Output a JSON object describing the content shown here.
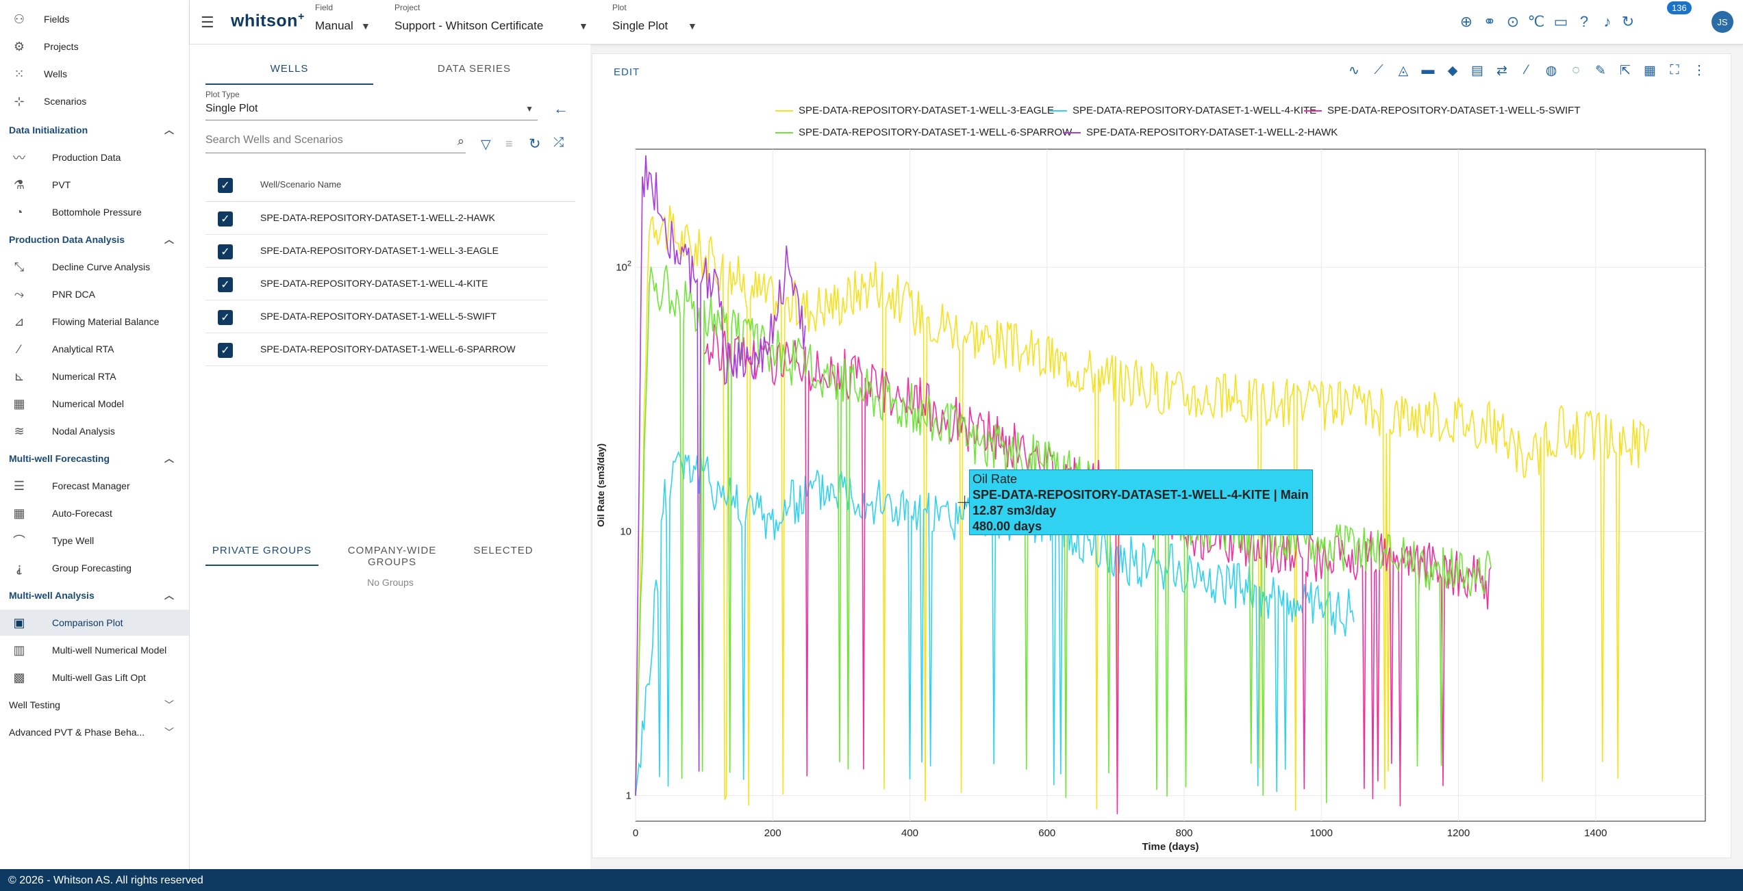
{
  "sidebar": {
    "top_items": [
      {
        "label": "Fields",
        "icon": "fields-icon"
      },
      {
        "label": "Projects",
        "icon": "projects-icon"
      },
      {
        "label": "Wells",
        "icon": "wells-icon"
      },
      {
        "label": "Scenarios",
        "icon": "scenarios-icon"
      }
    ],
    "sections": [
      {
        "title": "Data Initialization",
        "items": [
          "Production Data",
          "PVT",
          "Bottomhole Pressure"
        ]
      },
      {
        "title": "Production Data Analysis",
        "items": [
          "Decline Curve Analysis",
          "PNR DCA",
          "Flowing Material Balance",
          "Analytical RTA",
          "Numerical RTA",
          "Numerical Model",
          "Nodal Analysis"
        ]
      },
      {
        "title": "Multi-well Forecasting",
        "items": [
          "Forecast Manager",
          "Auto-Forecast",
          "Type Well",
          "Group Forecasting"
        ]
      },
      {
        "title": "Multi-well Analysis",
        "items": [
          "Comparison Plot",
          "Multi-well Numerical Model",
          "Multi-well Gas Lift Opt"
        ]
      }
    ],
    "collapsed": [
      "Well Testing",
      "Advanced PVT & Phase Beha..."
    ]
  },
  "topbar": {
    "logo": "whitson",
    "logo_sup": "+",
    "field_label": "Field",
    "field_value": "Manual",
    "project_label": "Project",
    "project_value": "Support - Whitson Certificate",
    "plot_label": "Plot",
    "plot_value": "Single Plot",
    "notifications": "136",
    "avatar": "JS",
    "temp_unit": "℃"
  },
  "left_panel": {
    "tabs": [
      "WELLS",
      "DATA SERIES"
    ],
    "plot_type_label": "Plot Type",
    "plot_type_value": "Single Plot",
    "search_placeholder": "Search Wells and Scenarios",
    "column_header": "Well/Scenario Name",
    "wells": [
      "SPE-DATA-REPOSITORY-DATASET-1-WELL-2-HAWK",
      "SPE-DATA-REPOSITORY-DATASET-1-WELL-3-EAGLE",
      "SPE-DATA-REPOSITORY-DATASET-1-WELL-4-KITE",
      "SPE-DATA-REPOSITORY-DATASET-1-WELL-5-SWIFT",
      "SPE-DATA-REPOSITORY-DATASET-1-WELL-6-SPARROW"
    ],
    "group_tabs": [
      "PRIVATE GROUPS",
      "COMPANY-WIDE GROUPS",
      "SELECTED"
    ],
    "no_groups": "No Groups"
  },
  "plot": {
    "edit_label": "EDIT",
    "tooltip": {
      "title": "Oil Rate",
      "series": "SPE-DATA-REPOSITORY-DATASET-1-WELL-4-KITE | Main",
      "value": "12.87 sm3/day",
      "time": "480.00 days"
    }
  },
  "chart_data": {
    "type": "line",
    "xlabel": "Time (days)",
    "ylabel": "Oil Rate (sm3/day)",
    "xlim": [
      0,
      1560
    ],
    "ylim": [
      0.8,
      280
    ],
    "yscale": "log",
    "x_ticks": [
      "0",
      "200",
      "400",
      "600",
      "800",
      "1000",
      "1200",
      "1400"
    ],
    "y_ticks": [
      {
        "base": "1",
        "sup": ""
      },
      {
        "base": "10",
        "sup": ""
      },
      {
        "base": "10",
        "sup": "2"
      }
    ],
    "legend_placement": "top",
    "grid": true,
    "series": [
      {
        "name": "SPE-DATA-REPOSITORY-DATASET-1-WELL-3-EAGLE",
        "color": "#f7e01e",
        "x": [
          0,
          20,
          60,
          100,
          150,
          200,
          250,
          300,
          350,
          400,
          500,
          600,
          700,
          800,
          900,
          1000,
          1100,
          1200,
          1250,
          1300,
          1350,
          1400,
          1480
        ],
        "y": [
          1,
          160,
          130,
          110,
          90,
          75,
          70,
          75,
          90,
          70,
          55,
          45,
          38,
          33,
          31,
          30,
          28,
          27,
          25,
          18,
          24,
          23,
          21
        ]
      },
      {
        "name": "SPE-DATA-REPOSITORY-DATASET-1-WELL-4-KITE",
        "color": "#2fd2f0",
        "x": [
          0,
          20,
          40,
          60,
          100,
          150,
          200,
          250,
          300,
          350,
          400,
          450,
          500,
          600,
          700,
          800,
          900,
          1000,
          1050
        ],
        "y": [
          1,
          3,
          12,
          20,
          16,
          13,
          11,
          14,
          15,
          13,
          12,
          11,
          12,
          11,
          8,
          7,
          6,
          5,
          5
        ]
      },
      {
        "name": "SPE-DATA-REPOSITORY-DATASET-1-WELL-5-SWIFT",
        "color": "#f0309e",
        "x": [
          100,
          200,
          300,
          400,
          500,
          600,
          700,
          800,
          900,
          1000,
          1100,
          1200,
          1250
        ],
        "y": [
          50,
          45,
          40,
          32,
          24,
          18,
          14,
          10,
          9,
          8,
          8,
          7,
          6
        ]
      },
      {
        "name": "SPE-DATA-REPOSITORY-DATASET-1-WELL-6-SPARROW",
        "color": "#6ee636",
        "x": [
          0,
          20,
          60,
          100,
          150,
          200,
          250,
          300,
          400,
          500,
          600,
          700,
          800,
          900,
          1000,
          1100,
          1200,
          1250
        ],
        "y": [
          1,
          90,
          80,
          65,
          55,
          48,
          42,
          38,
          30,
          22,
          18,
          13,
          11,
          10,
          9,
          8,
          7,
          7
        ]
      },
      {
        "name": "SPE-DATA-REPOSITORY-DATASET-1-WELL-2-HAWK",
        "color": "#a93ae0",
        "x": [
          0,
          10,
          20,
          40,
          60,
          80,
          100,
          120,
          130,
          180,
          200,
          220,
          240,
          250
        ],
        "y": [
          1,
          200,
          230,
          160,
          110,
          95,
          100,
          80,
          45,
          45,
          60,
          100,
          60,
          55
        ]
      }
    ]
  }
}
